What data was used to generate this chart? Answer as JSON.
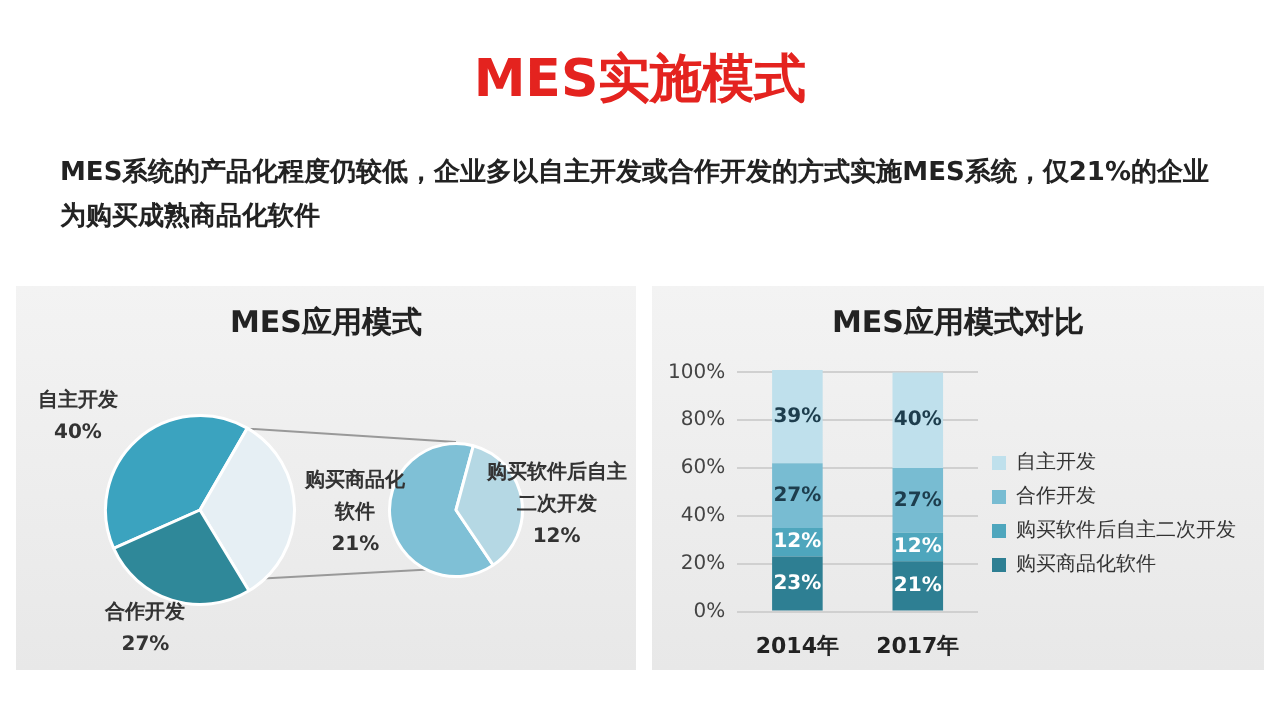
{
  "chart_data": [
    {
      "type": "other",
      "title": "MES实施模式",
      "annotations": [
        "MES系统的产品化程度仍较低，企业多以自主开发或合作开发的方式实施MES系统，仅21%的企业为购买成熟商品化软件"
      ]
    },
    {
      "type": "pie",
      "title": "MES应用模式",
      "categories": [
        "自主开发",
        null,
        "合作开发"
      ],
      "values": [
        40,
        33,
        27
      ],
      "colors": [
        "#3ba3bf",
        "#e6eff4",
        "#2f8899"
      ],
      "value_labels": [
        "40%",
        null,
        "27%"
      ]
    },
    {
      "type": "pie",
      "categories": [
        "购买商品化软件",
        "购买软件后自主二次开发"
      ],
      "values": [
        21,
        12
      ],
      "colors": [
        "#7fc0d6",
        "#b5d8e4"
      ],
      "value_labels": [
        "21%",
        "12%"
      ]
    },
    {
      "type": "bar",
      "title": "MES应用模式对比",
      "categories": [
        "2014年",
        "2017年"
      ],
      "stacked": true,
      "grid": "y",
      "legend": "right",
      "series": [
        {
          "name": "购买商品化软件",
          "color": "#2e7f93",
          "values": [
            23,
            21
          ],
          "value_labels": [
            "23%",
            "21%"
          ]
        },
        {
          "name": "购买软件后自主二次开发",
          "color": "#4ea6bd",
          "values": [
            12,
            12
          ],
          "value_labels": [
            "12%",
            "12%"
          ]
        },
        {
          "name": "合作开发",
          "color": "#78bcd2",
          "values": [
            27,
            27
          ],
          "value_labels": [
            "27%",
            "27%"
          ]
        },
        {
          "name": "自主开发",
          "color": "#bfe0ec",
          "values": [
            39,
            40
          ],
          "value_labels": [
            "39%",
            "40%"
          ]
        }
      ],
      "ylim": [
        0,
        101
      ],
      "yticks": [
        {
          "value": 0,
          "label": "0%"
        },
        {
          "value": 20,
          "label": "20%"
        },
        {
          "value": 40,
          "label": "40%"
        },
        {
          "value": 60,
          "label": "60%"
        },
        {
          "value": 80,
          "label": "80%"
        },
        {
          "value": 100,
          "label": "100%"
        }
      ]
    }
  ]
}
